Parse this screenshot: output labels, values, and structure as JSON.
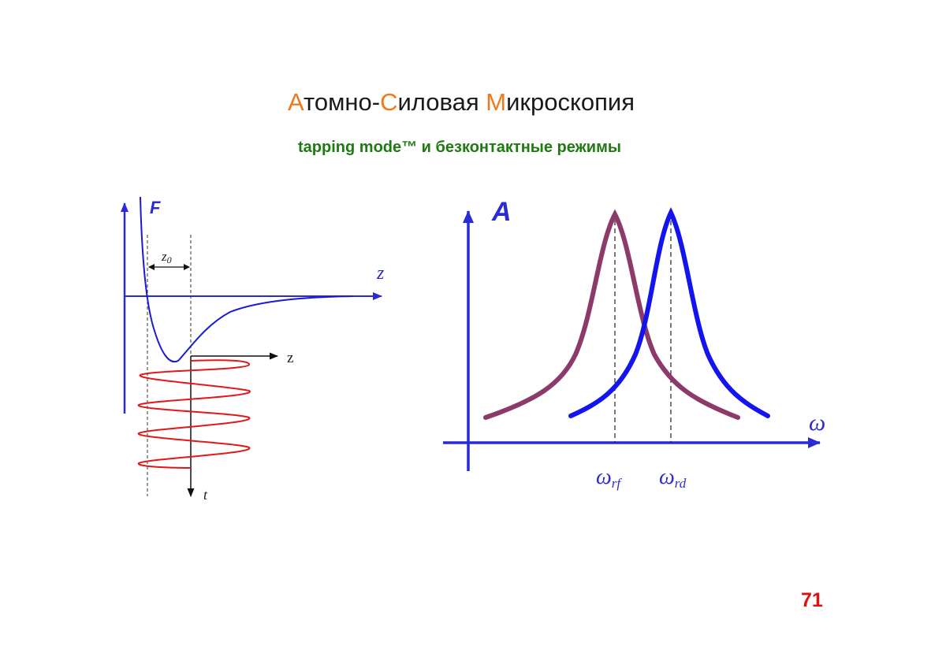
{
  "header": {
    "title_parts": [
      {
        "text": "А",
        "accent": true
      },
      {
        "text": "томно-",
        "accent": false
      },
      {
        "text": "С",
        "accent": true
      },
      {
        "text": "иловая ",
        "accent": false
      },
      {
        "text": "М",
        "accent": true
      },
      {
        "text": "икроскопия",
        "accent": false
      }
    ],
    "subtitle": "tapping mode™ и безконтактные режимы"
  },
  "left_diagram": {
    "force_axis_label": "F",
    "distance_axis_label": "z",
    "gap_label": "z",
    "gap_label_subscript": "0",
    "oscillation_axis_label": "z",
    "time_axis_label": "t"
  },
  "right_diagram": {
    "amplitude_axis_label": "A",
    "frequency_axis_label": "ω",
    "resonance_free_label": "ω",
    "resonance_free_subscript": "rf",
    "resonance_driven_label": "ω",
    "resonance_driven_subscript": "rd"
  },
  "colors": {
    "title_accent": "#f07818",
    "subtitle": "#1f7a14",
    "axis_blue": "#2a2ad8",
    "curve_blue": "#1414ee",
    "curve_purple": "#8c3a6a",
    "oscillation_red": "#e01818",
    "page_number": "#e01010"
  },
  "footer": {
    "page_number": "71"
  }
}
